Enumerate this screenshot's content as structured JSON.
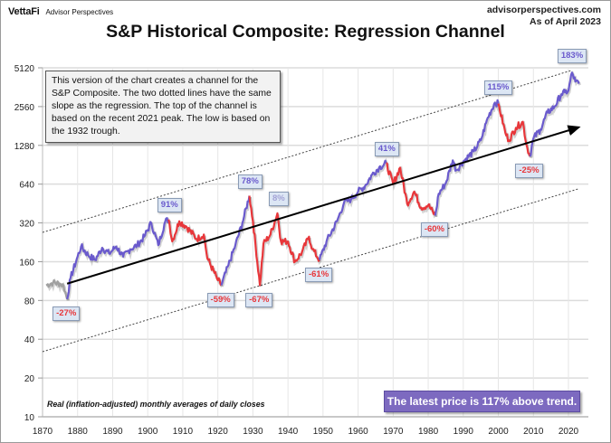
{
  "header": {
    "brand_logo": "VettaFi",
    "brand_sub": "Advisor Perspectives",
    "site": "advisorperspectives.com",
    "as_of": "As of April 2023"
  },
  "note": "This version of the chart creates a channel for the S&P Composite. The two dotted lines have the same slope as the regression. The top of the channel is based on the recent 2021 peak. The low is based on the 1932 trough.",
  "footnote": "Real (inflation-adjusted) monthly averages of daily closes",
  "latest_box": "The latest price is 117% above trend.",
  "colors": {
    "above_trend": "#6a5acd",
    "below_trend": "#e8363a",
    "pre_1877": "#a0a0a0",
    "regression": "#000000",
    "channel": "#444444",
    "callout_bg": "#dce6f4",
    "latest_bg": "#7d6ac0"
  },
  "chart_data": {
    "type": "line",
    "title": "S&P Historical Composite: Regression Channel",
    "xlabel": "",
    "ylabel": "",
    "yscale": "log2",
    "xlim": [
      1870,
      2025
    ],
    "ylim": [
      10,
      5120
    ],
    "grid": true,
    "x_ticks": [
      "1870",
      "1880",
      "1890",
      "1900",
      "1910",
      "1920",
      "1930",
      "1940",
      "1950",
      "1960",
      "1970",
      "1980",
      "1990",
      "2000",
      "2010",
      "2020"
    ],
    "y_ticks": [
      "5120",
      "2560",
      "1280",
      "640",
      "320",
      "160",
      "80",
      "40",
      "20",
      "10"
    ],
    "series": [
      {
        "name": "S&P Composite (real)",
        "points": [
          [
            1871,
            105
          ],
          [
            1873,
            110
          ],
          [
            1875,
            108
          ],
          [
            1876,
            104
          ],
          [
            1877,
            82
          ],
          [
            1878,
            120
          ],
          [
            1880,
            175
          ],
          [
            1881,
            210
          ],
          [
            1883,
            180
          ],
          [
            1885,
            165
          ],
          [
            1887,
            205
          ],
          [
            1889,
            185
          ],
          [
            1891,
            210
          ],
          [
            1893,
            175
          ],
          [
            1895,
            200
          ],
          [
            1897,
            215
          ],
          [
            1899,
            250
          ],
          [
            1901,
            320
          ],
          [
            1903,
            215
          ],
          [
            1905,
            330
          ],
          [
            1906,
            340
          ],
          [
            1907,
            230
          ],
          [
            1909,
            330
          ],
          [
            1911,
            300
          ],
          [
            1914,
            240
          ],
          [
            1916,
            260
          ],
          [
            1917,
            170
          ],
          [
            1920,
            115
          ],
          [
            1921,
            105
          ],
          [
            1923,
            150
          ],
          [
            1925,
            215
          ],
          [
            1927,
            320
          ],
          [
            1929,
            520
          ],
          [
            1930,
            330
          ],
          [
            1932,
            105
          ],
          [
            1933,
            220
          ],
          [
            1935,
            260
          ],
          [
            1937,
            380
          ],
          [
            1938,
            230
          ],
          [
            1940,
            230
          ],
          [
            1942,
            160
          ],
          [
            1944,
            190
          ],
          [
            1946,
            250
          ],
          [
            1947,
            200
          ],
          [
            1949,
            165
          ],
          [
            1951,
            230
          ],
          [
            1954,
            330
          ],
          [
            1956,
            460
          ],
          [
            1958,
            490
          ],
          [
            1960,
            560
          ],
          [
            1962,
            620
          ],
          [
            1964,
            760
          ],
          [
            1966,
            860
          ],
          [
            1968,
            930
          ],
          [
            1970,
            640
          ],
          [
            1972,
            860
          ],
          [
            1974,
            450
          ],
          [
            1976,
            560
          ],
          [
            1978,
            420
          ],
          [
            1980,
            440
          ],
          [
            1982,
            365
          ],
          [
            1983,
            540
          ],
          [
            1985,
            650
          ],
          [
            1987,
            980
          ],
          [
            1988,
            820
          ],
          [
            1990,
            960
          ],
          [
            1993,
            1150
          ],
          [
            1995,
            1400
          ],
          [
            1997,
            2100
          ],
          [
            1999,
            2750
          ],
          [
            2000,
            2700
          ],
          [
            2002,
            1600
          ],
          [
            2003,
            1400
          ],
          [
            2005,
            1750
          ],
          [
            2007,
            1950
          ],
          [
            2008,
            1300
          ],
          [
            2009,
            1050
          ],
          [
            2010,
            1450
          ],
          [
            2012,
            1700
          ],
          [
            2014,
            2300
          ],
          [
            2016,
            2550
          ],
          [
            2018,
            3200
          ],
          [
            2019,
            3300
          ],
          [
            2020,
            3400
          ],
          [
            2021,
            4700
          ],
          [
            2022,
            4000
          ],
          [
            2023,
            3850
          ]
        ],
        "segments_by_trend": [
          {
            "from": 1871,
            "to": 1877,
            "class": "pre"
          },
          {
            "from": 1877,
            "to": 1906,
            "class": "above"
          },
          {
            "from": 1906,
            "to": 1921,
            "class": "below"
          },
          {
            "from": 1921,
            "to": 1929,
            "class": "above"
          },
          {
            "from": 1929,
            "to": 1949,
            "class": "below"
          },
          {
            "from": 1949,
            "to": 1968,
            "class": "above"
          },
          {
            "from": 1968,
            "to": 1982,
            "class": "below"
          },
          {
            "from": 1982,
            "to": 2000,
            "class": "above"
          },
          {
            "from": 2000,
            "to": 2009,
            "class": "below"
          },
          {
            "from": 2009,
            "to": 2023,
            "class": "above"
          }
        ]
      },
      {
        "name": "Regression trend",
        "points": [
          [
            1877,
            108
          ],
          [
            2023,
            1770
          ]
        ]
      },
      {
        "name": "Upper channel",
        "points": [
          [
            1870,
            270
          ],
          [
            2021,
            4900
          ]
        ]
      },
      {
        "name": "Lower channel",
        "points": [
          [
            1870,
            32
          ],
          [
            2023,
            590
          ]
        ]
      }
    ],
    "annotations": [
      {
        "label": "-27%",
        "x": 1877,
        "y": 82,
        "type": "trough"
      },
      {
        "label": "91%",
        "x": 1906,
        "y": 340,
        "type": "peak"
      },
      {
        "label": "-59%",
        "x": 1921,
        "y": 105,
        "type": "trough"
      },
      {
        "label": "78%",
        "x": 1929,
        "y": 520,
        "type": "peak"
      },
      {
        "label": "-67%",
        "x": 1932,
        "y": 105,
        "type": "trough"
      },
      {
        "label": "8%",
        "x": 1937,
        "y": 380,
        "type": "peak-faint"
      },
      {
        "label": "-61%",
        "x": 1949,
        "y": 165,
        "type": "trough"
      },
      {
        "label": "41%",
        "x": 1968,
        "y": 930,
        "type": "peak"
      },
      {
        "label": "-60%",
        "x": 1982,
        "y": 365,
        "type": "trough"
      },
      {
        "label": "115%",
        "x": 2000,
        "y": 2750,
        "type": "peak"
      },
      {
        "label": "-25%",
        "x": 2009,
        "y": 1050,
        "type": "trough"
      },
      {
        "label": "183%",
        "x": 2021,
        "y": 4900,
        "type": "peak"
      }
    ]
  }
}
